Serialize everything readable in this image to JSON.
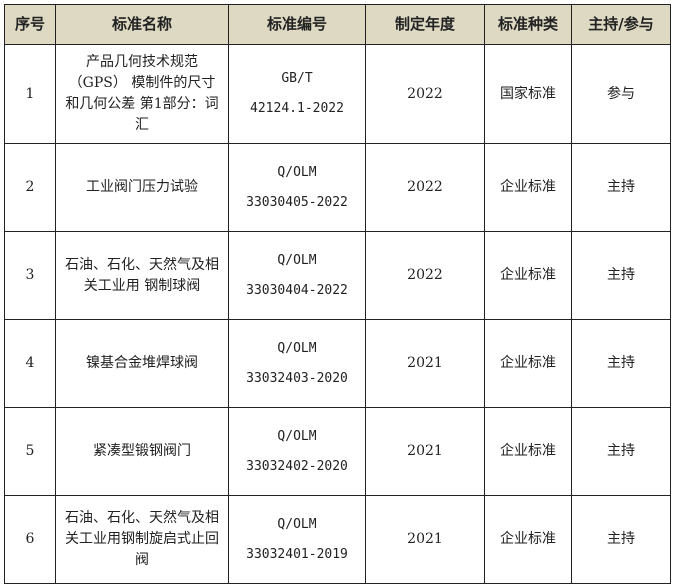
{
  "table": {
    "headers": [
      "序号",
      "标准名称",
      "标准编号",
      "制定年度",
      "标准种类",
      "主持/参与"
    ],
    "rows": [
      {
        "no": "1",
        "name": "产品几何技术规范（GPS） 模制件的尺寸和几何公差 第1部分：词汇",
        "code1": "GB/T",
        "code2": "42124.1-2022",
        "year": "2022",
        "type": "国家标准",
        "role": "参与"
      },
      {
        "no": "2",
        "name": "工业阀门压力试验",
        "code1": "Q/OLM",
        "code2": "33030405-2022",
        "year": "2022",
        "type": "企业标准",
        "role": "主持"
      },
      {
        "no": "3",
        "name": "石油、石化、天然气及相关工业用 钢制球阀",
        "code1": "Q/OLM",
        "code2": "33030404-2022",
        "year": "2022",
        "type": "企业标准",
        "role": "主持"
      },
      {
        "no": "4",
        "name": "镍基合金堆焊球阀",
        "code1": "Q/OLM",
        "code2": "33032403-2020",
        "year": "2021",
        "type": "企业标准",
        "role": "主持"
      },
      {
        "no": "5",
        "name": "紧凑型锻钢阀门",
        "code1": "Q/OLM",
        "code2": "33032402-2020",
        "year": "2021",
        "type": "企业标准",
        "role": "主持"
      },
      {
        "no": "6",
        "name": "石油、石化、天然气及相关工业用钢制旋启式止回阀",
        "code1": "Q/OLM",
        "code2": "33032401-2019",
        "year": "2021",
        "type": "企业标准",
        "role": "主持"
      }
    ]
  },
  "colors": {
    "header_bg": "#ddd9c3",
    "border": "#222222"
  }
}
